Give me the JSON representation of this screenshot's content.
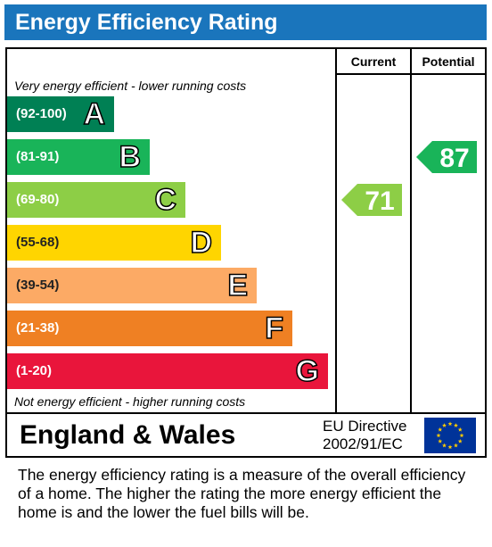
{
  "title": "Energy Efficiency Rating",
  "columns": {
    "current": "Current",
    "potential": "Potential"
  },
  "top_note": "Very energy efficient - lower running costs",
  "bottom_note": "Not energy efficient - higher running costs",
  "chart_data": {
    "type": "bar",
    "categories": [
      "A",
      "B",
      "C",
      "D",
      "E",
      "F",
      "G"
    ],
    "bands": [
      {
        "letter": "A",
        "range": "(92-100)",
        "min": 92,
        "max": 100,
        "color": "#008054"
      },
      {
        "letter": "B",
        "range": "(81-91)",
        "min": 81,
        "max": 91,
        "color": "#19b459"
      },
      {
        "letter": "C",
        "range": "(69-80)",
        "min": 69,
        "max": 80,
        "color": "#8dce46"
      },
      {
        "letter": "D",
        "range": "(55-68)",
        "min": 55,
        "max": 68,
        "color": "#ffd500"
      },
      {
        "letter": "E",
        "range": "(39-54)",
        "min": 39,
        "max": 54,
        "color": "#fcaa65"
      },
      {
        "letter": "F",
        "range": "(21-38)",
        "min": 21,
        "max": 38,
        "color": "#ef8023"
      },
      {
        "letter": "G",
        "range": "(1-20)",
        "min": 1,
        "max": 20,
        "color": "#e9153b"
      }
    ],
    "current": {
      "value": 71,
      "label": "71",
      "band": "C",
      "color": "#8dce46"
    },
    "potential": {
      "value": 87,
      "label": "87",
      "band": "B",
      "color": "#19b459"
    }
  },
  "footer": {
    "region": "England & Wales",
    "directive_line1": "EU Directive",
    "directive_line2": "2002/91/EC",
    "flag_icon": "eu-flag-icon",
    "flag_blue": "#003399",
    "flag_star": "#ffcc00"
  },
  "description": "The energy efficiency rating is a measure of the overall efficiency of a home.  The higher the rating the more energy efficient the home is and the lower the fuel bills will be."
}
